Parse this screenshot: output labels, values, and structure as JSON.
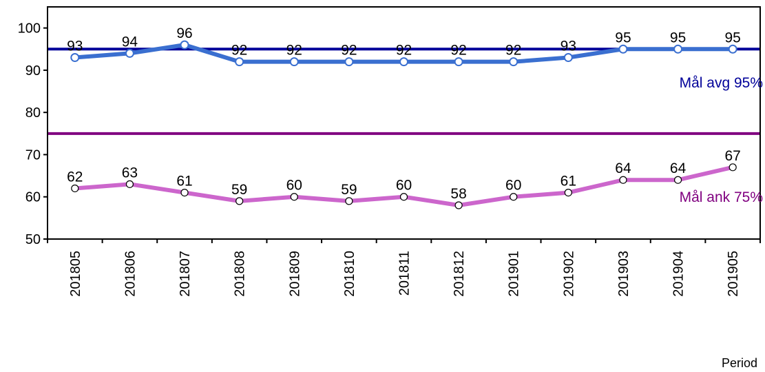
{
  "chart_data": {
    "type": "line",
    "categories": [
      "201805",
      "201806",
      "201807",
      "201808",
      "201809",
      "201810",
      "201811",
      "201812",
      "201901",
      "201902",
      "201903",
      "201904",
      "201905"
    ],
    "series": [
      {
        "values": [
          93,
          94,
          96,
          92,
          92,
          92,
          92,
          92,
          92,
          93,
          95,
          95,
          95
        ],
        "color": "#3A6FD0",
        "marker": "hollow-circle"
      },
      {
        "values": [
          62,
          63,
          61,
          59,
          60,
          59,
          60,
          58,
          60,
          61,
          64,
          64,
          67
        ],
        "color": "#CC66CC",
        "marker": "white-circle"
      }
    ],
    "reference_lines": [
      {
        "value": 95,
        "label": "Mål avg 95%",
        "color": "#000099"
      },
      {
        "value": 75,
        "label": "Mål ank 75%",
        "color": "#800080"
      }
    ],
    "xlabel": "Period",
    "ylabel": "",
    "ylim": [
      50,
      105
    ],
    "yticks": [
      50,
      60,
      70,
      80,
      90,
      100
    ],
    "grid": false,
    "legend": "none"
  }
}
